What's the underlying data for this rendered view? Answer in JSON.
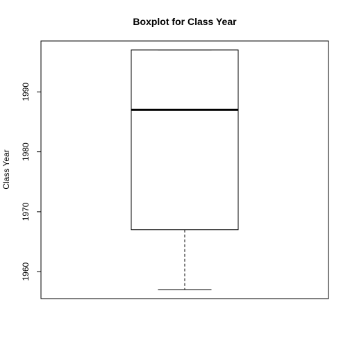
{
  "chart_data": {
    "type": "boxplot",
    "title": "Boxplot for Class Year",
    "xlabel": "",
    "ylabel": "Class Year",
    "ylim": [
      1955.5,
      1998.5
    ],
    "yticks": [
      1960,
      1970,
      1980,
      1990
    ],
    "grid": false,
    "box": {
      "whisker_low": 1957,
      "q1": 1967,
      "median": 1987,
      "q3": 1997,
      "whisker_high": 1997
    }
  }
}
